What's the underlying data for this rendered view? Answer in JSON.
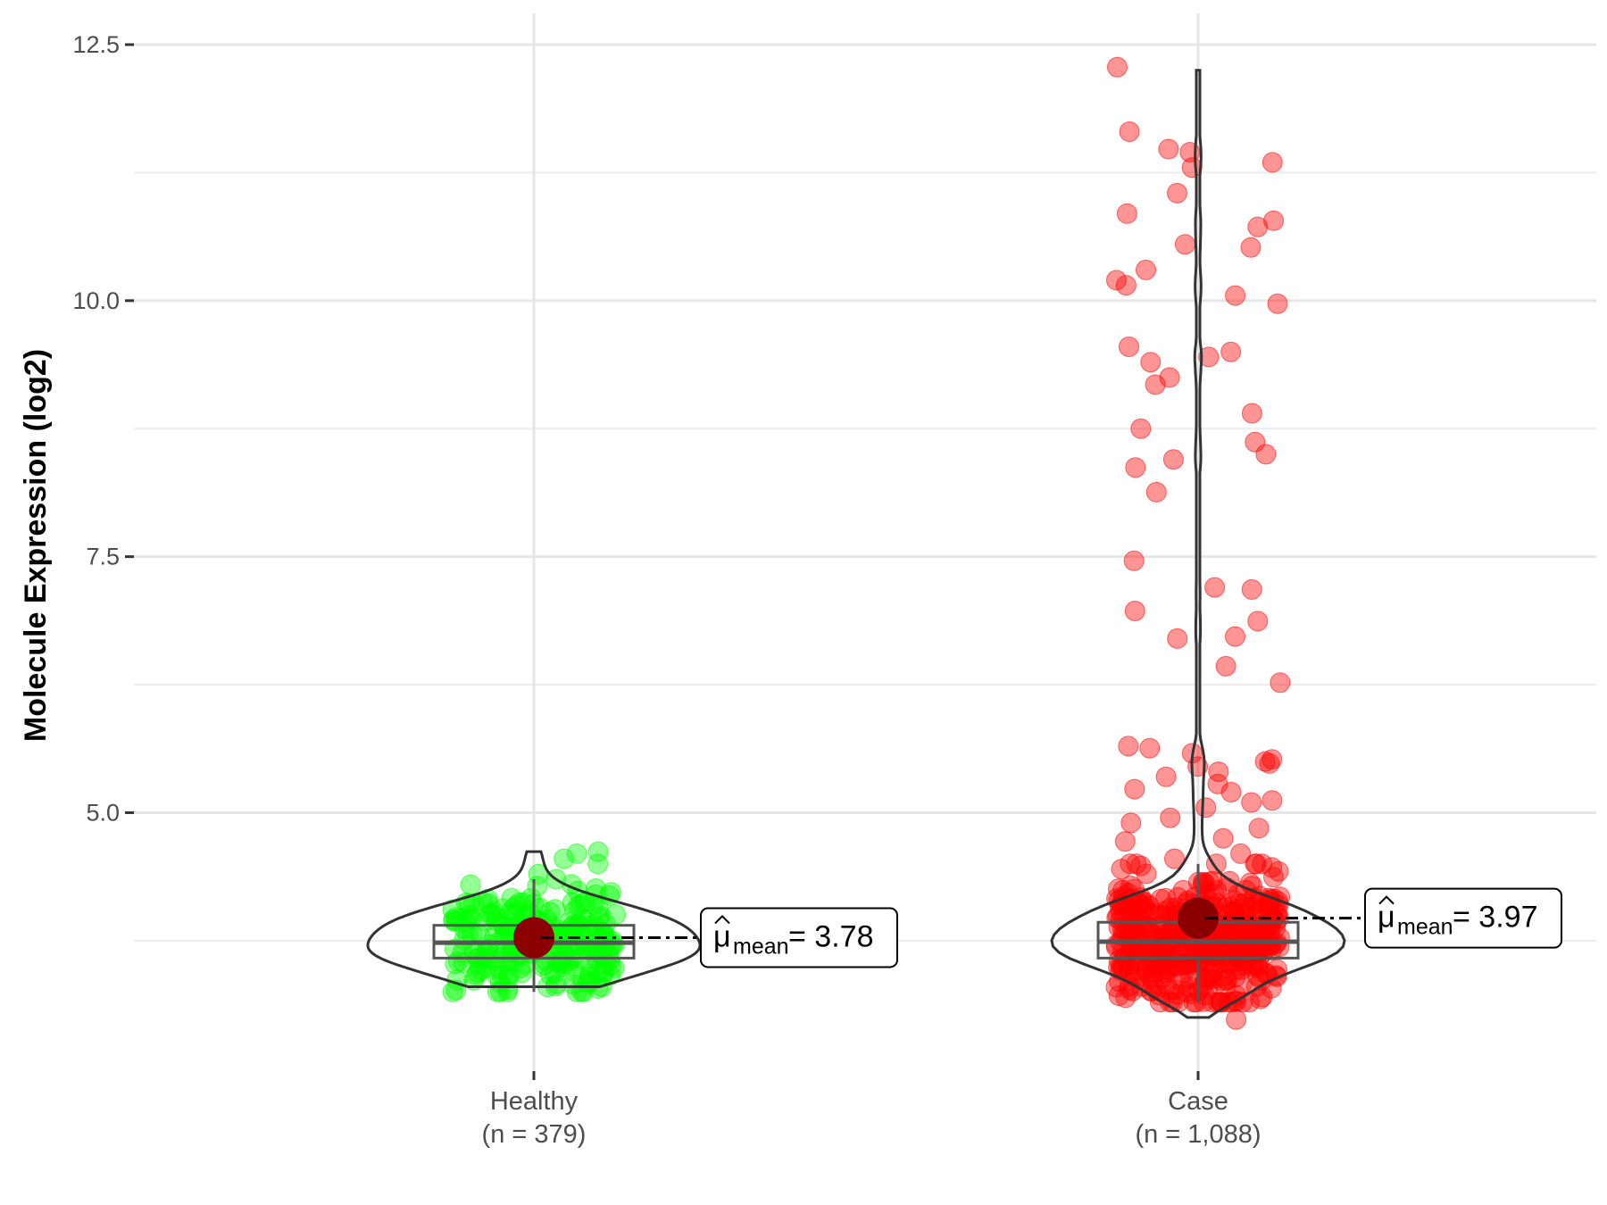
{
  "chart_data": {
    "type": "violin",
    "ylabel": "Molecule Expression (log2)",
    "xlabel": "",
    "ylim": [
      2.52,
      12.5
    ],
    "y_ticks": [
      "5.0",
      "7.5",
      "10.0",
      "12.5"
    ],
    "grid": true,
    "groups": [
      {
        "name": "Healthy",
        "n_label": "(n = 379)",
        "color": "#00ff00",
        "mean": 3.78,
        "mean_label": "3.78",
        "box": {
          "min": 3.25,
          "q1": 3.58,
          "median": 3.73,
          "q3": 3.9,
          "max": 4.35
        },
        "violin_range": [
          3.3,
          4.62
        ],
        "outliers": [
          3.3,
          3.35,
          4.2,
          4.3,
          4.4,
          4.5,
          4.55,
          4.6,
          4.62
        ]
      },
      {
        "name": "Case",
        "n_label": "(n = 1,088)",
        "color": "#ff0000",
        "mean": 3.97,
        "mean_label": "3.97",
        "box": {
          "min": 3.15,
          "q1": 3.58,
          "median": 3.74,
          "q3": 3.93,
          "max": 4.5
        },
        "violin_range": [
          3.0,
          12.25
        ],
        "outliers": [
          12.28,
          11.65,
          11.48,
          11.45,
          11.35,
          11.3,
          11.05,
          10.85,
          10.78,
          10.72,
          10.55,
          10.52,
          10.3,
          10.2,
          10.15,
          10.05,
          9.97,
          9.55,
          9.5,
          9.45,
          9.4,
          9.25,
          9.18,
          8.9,
          8.75,
          8.62,
          8.5,
          8.45,
          8.37,
          8.13,
          7.46,
          7.2,
          7.18,
          6.97,
          6.87,
          6.72,
          6.7,
          6.43,
          6.27,
          5.65,
          5.63,
          5.58,
          5.52,
          5.5,
          5.48,
          5.45,
          5.4,
          5.35,
          5.28,
          5.23,
          5.2,
          5.12,
          5.1,
          5.05,
          4.95,
          4.9,
          4.85,
          4.75,
          4.72,
          4.6,
          4.55,
          4.5,
          4.48,
          4.45,
          2.98
        ]
      }
    ]
  }
}
